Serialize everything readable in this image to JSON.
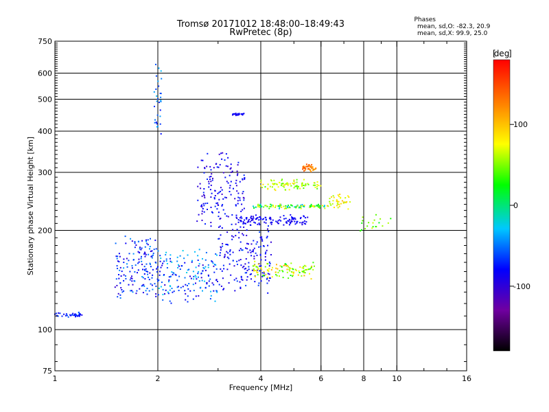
{
  "header": {
    "title_line1": "Tromsø 20171012 18:48:00–18:49:43",
    "title_line2": "RwPretec (8p)",
    "phases_label": "Phases",
    "phases_o": "mean, sd,O: -82.3, 20.9",
    "phases_x": "mean, sd,X:  99.9, 25.0"
  },
  "chart_data": {
    "type": "scatter",
    "title": "Tromsø 20171012 18:48:00–18:49:43",
    "subtitle": "RwPretec (8p)",
    "xlabel": "Frequency [MHz]",
    "ylabel": "Stationary phase Virtual Height [km]",
    "x_scale": "log",
    "y_scale": "log",
    "xlim": [
      1,
      16
    ],
    "ylim": [
      75,
      750
    ],
    "x_ticks": [
      1,
      2,
      4,
      6,
      8,
      10,
      16
    ],
    "x_tick_labels": [
      "1",
      "2",
      "4",
      "6",
      "8",
      "10",
      "16"
    ],
    "x_gridlines": [
      2,
      4,
      6,
      8,
      10
    ],
    "y_ticks": [
      75,
      100,
      200,
      300,
      400,
      500,
      600,
      750
    ],
    "y_tick_labels": [
      "75",
      "100",
      "200",
      "300",
      "400",
      "500",
      "600",
      "750"
    ],
    "y_gridlines": [
      100,
      200,
      300,
      400,
      500,
      600
    ],
    "grid": true,
    "colorbar": {
      "label": "deg",
      "range": [
        -180,
        180
      ],
      "ticks": [
        100,
        0,
        -100
      ],
      "tick_labels": [
        "100",
        "0",
        "-100"
      ],
      "colors": [
        "#000000",
        "#7000a0",
        "#0000ff",
        "#00c8ff",
        "#00ff00",
        "#ffff00",
        "#ff8000",
        "#ff0000"
      ]
    }
  }
}
